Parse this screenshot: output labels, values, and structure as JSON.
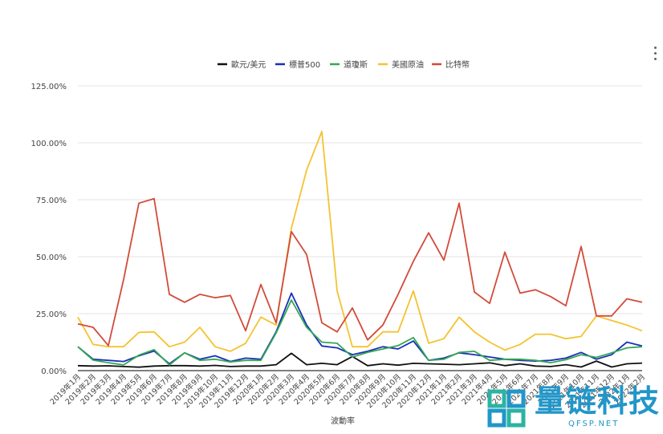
{
  "chart_data": {
    "type": "line",
    "title": "",
    "xlabel": "波動率",
    "ylabel": "",
    "ylim": [
      0,
      125
    ],
    "y_ticks": [
      "0.00%",
      "25.00%",
      "50.00%",
      "75.00%",
      "100.00%",
      "125.00%"
    ],
    "legend_position": "top-center",
    "categories": [
      "2019年1月",
      "2019年2月",
      "2019年3月",
      "2019年4月",
      "2019年5月",
      "2019年6月",
      "2019年7月",
      "2019年8月",
      "2019年9月",
      "2019年10月",
      "2019年11月",
      "2019年12月",
      "2020年1月",
      "2020年2月",
      "2020年3月",
      "2020年4月",
      "2020年5月",
      "2020年6月",
      "2020年7月",
      "2020年8月",
      "2020年9月",
      "2020年10月",
      "2020年11月",
      "2020年12月",
      "2021年1月",
      "2021年2月",
      "2021年3月",
      "2021年4月",
      "2021年5月",
      "2021年6月",
      "2021年7月",
      "2021年8月",
      "2021年9月",
      "2021年10月",
      "2021年11月",
      "2021年12月",
      "2022年1月",
      "2022年2月"
    ],
    "series": [
      {
        "name": "歐元/美元",
        "color": "#111111",
        "values": [
          2.2,
          2.0,
          2.1,
          1.8,
          1.5,
          2.0,
          2.2,
          2.2,
          2.0,
          2.3,
          1.8,
          2.0,
          2.0,
          2.6,
          7.6,
          2.6,
          3.2,
          2.6,
          6.2,
          2.2,
          3.0,
          2.4,
          3.2,
          3.0,
          2.8,
          2.6,
          3.0,
          3.4,
          2.2,
          3.0,
          2.0,
          1.8,
          2.6,
          1.6,
          4.2,
          1.6,
          3.0,
          3.3
        ]
      },
      {
        "name": "標普500",
        "color": "#1a2fb8",
        "values": [
          10.5,
          5.0,
          4.5,
          4.0,
          6.5,
          8.6,
          3.0,
          7.8,
          5.0,
          6.5,
          4.0,
          5.5,
          5.0,
          17.0,
          34.0,
          20.0,
          10.8,
          10.0,
          7.0,
          8.5,
          10.5,
          9.5,
          13.0,
          4.5,
          5.5,
          7.8,
          7.0,
          6.0,
          5.0,
          4.5,
          4.2,
          4.5,
          5.5,
          8.0,
          5.0,
          7.0,
          12.5,
          10.8
        ]
      },
      {
        "name": "道瓊斯",
        "color": "#34a853",
        "values": [
          10.5,
          4.6,
          3.5,
          2.5,
          6.8,
          9.2,
          2.5,
          7.8,
          4.5,
          5.0,
          3.8,
          4.5,
          4.5,
          16.5,
          31.0,
          19.0,
          12.5,
          12.0,
          6.0,
          8.0,
          9.5,
          11.0,
          14.5,
          4.5,
          5.0,
          8.0,
          8.5,
          4.5,
          5.0,
          5.0,
          4.5,
          3.5,
          4.8,
          7.0,
          5.8,
          7.8,
          10.0,
          10.5
        ]
      },
      {
        "name": "美國原油",
        "color": "#f4c330",
        "values": [
          23.5,
          11.5,
          10.5,
          10.5,
          16.8,
          17.0,
          10.5,
          12.5,
          19.0,
          10.5,
          8.5,
          12.0,
          23.5,
          20.0,
          62.5,
          88.0,
          105.0,
          35.0,
          10.5,
          10.5,
          17.0,
          17.0,
          35.0,
          12.0,
          14.0,
          23.5,
          17.0,
          12.5,
          9.0,
          11.5,
          16.0,
          16.0,
          14.0,
          15.0,
          24.0,
          22.0,
          20.0,
          17.5
        ]
      },
      {
        "name": "比特幣",
        "color": "#d24b3a",
        "values": [
          20.5,
          19.0,
          11.0,
          40.0,
          73.5,
          75.5,
          33.5,
          30.0,
          33.5,
          32.0,
          33.0,
          17.5,
          37.8,
          21.0,
          61.0,
          51.0,
          21.0,
          17.0,
          27.5,
          13.5,
          20.0,
          33.5,
          48.0,
          60.5,
          48.5,
          73.5,
          34.5,
          29.5,
          52.0,
          34.0,
          35.5,
          32.5,
          28.5,
          54.5,
          24.0,
          24.0,
          31.5,
          30.0
        ]
      }
    ]
  },
  "menu": {
    "icon": "more-vert-icon"
  },
  "watermark": {
    "text": "量链科技",
    "subtext": "QFSP.NET"
  }
}
